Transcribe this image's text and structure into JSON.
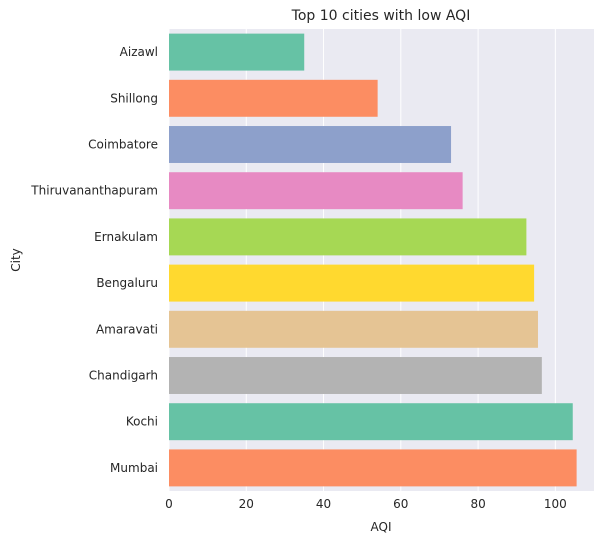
{
  "chart_data": {
    "type": "bar",
    "orientation": "horizontal",
    "title": "Top 10 cities with low AQI",
    "xlabel": "AQI",
    "ylabel": "City",
    "categories": [
      "Aizawl",
      "Shillong",
      "Coimbatore",
      "Thiruvananthapuram",
      "Ernakulam",
      "Bengaluru",
      "Amaravati",
      "Chandigarh",
      "Kochi",
      "Mumbai"
    ],
    "values": [
      35,
      54,
      73,
      76,
      92.5,
      94.5,
      95.5,
      96.5,
      104.5,
      105.5
    ],
    "colors": [
      "#66c2a5",
      "#fc8d62",
      "#8da0cb",
      "#e78ac3",
      "#a6d854",
      "#ffd92f",
      "#e5c494",
      "#b3b3b3",
      "#66c2a5",
      "#fc8d62"
    ],
    "xlim": [
      0,
      110
    ],
    "xticks": [
      0,
      20,
      40,
      60,
      80,
      100
    ],
    "grid": true,
    "background": "#eaeaf2"
  }
}
